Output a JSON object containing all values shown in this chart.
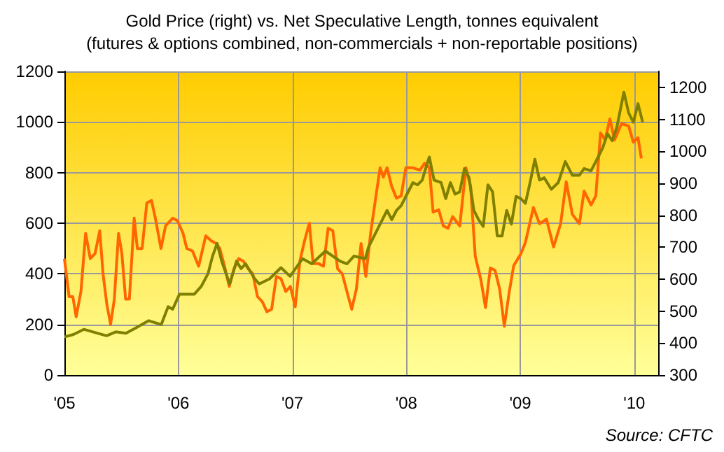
{
  "chart_data": {
    "type": "line",
    "title": "Gold Price (right) vs. Net Speculative Length, tonnes equivalent",
    "subtitle": "(futures & options combined, non-commercials + non-reportable positions)",
    "annotations": [
      "Source: CFTC"
    ],
    "xlim": [
      2005,
      2010.21
    ],
    "xticks": [
      {
        "value": 2005,
        "label": "'05"
      },
      {
        "value": 2006,
        "label": "'06"
      },
      {
        "value": 2007,
        "label": "'07"
      },
      {
        "value": 2008,
        "label": "'08"
      },
      {
        "value": 2009,
        "label": "'09"
      },
      {
        "value": 2010,
        "label": "'10"
      }
    ],
    "ylim": [
      0,
      1200
    ],
    "yticks": [
      0,
      200,
      400,
      600,
      800,
      1000,
      1200
    ],
    "y2lim": [
      300,
      1250
    ],
    "y2ticks": [
      300,
      400,
      500,
      600,
      700,
      800,
      900,
      1000,
      1100,
      1200
    ],
    "grid": true,
    "marker": "none",
    "line_style": "solid",
    "series": [
      {
        "color": "#ff6600",
        "x": [
          2005,
          2005.041,
          2005.074,
          2005.103,
          2005.145,
          2005.186,
          2005.227,
          2005.269,
          2005.31,
          2005.339,
          2005.372,
          2005.405,
          2005.438,
          2005.475,
          2005.504,
          2005.537,
          2005.57,
          2005.612,
          2005.64,
          2005.682,
          2005.723,
          2005.764,
          2005.798,
          2005.847,
          2005.888,
          2005.95,
          2005.992,
          2006.041,
          2006.074,
          2006.124,
          2006.178,
          2006.24,
          2006.289,
          2006.331,
          2006.364,
          2006.405,
          2006.446,
          2006.488,
          2006.529,
          2006.57,
          2006.612,
          2006.653,
          2006.694,
          2006.736,
          2006.777,
          2006.818,
          2006.86,
          2006.901,
          2006.942,
          2006.983,
          2007.025,
          2007.066,
          2007.107,
          2007.149,
          2007.182,
          2007.231,
          2007.273,
          2007.314,
          2007.355,
          2007.397,
          2007.438,
          2007.479,
          2007.521,
          2007.562,
          2007.603,
          2007.645,
          2007.687,
          2007.728,
          2007.77,
          2007.798,
          2007.831,
          2007.872,
          2007.914,
          2007.955,
          2007.996,
          2008.058,
          2008.119,
          2008.16,
          2008.202,
          2008.235,
          2008.284,
          2008.325,
          2008.366,
          2008.407,
          2008.469,
          2008.523,
          2008.564,
          2008.605,
          2008.654,
          2008.695,
          2008.737,
          2008.778,
          2008.819,
          2008.86,
          2008.901,
          2008.942,
          2009.004,
          2009.045,
          2009.115,
          2009.169,
          2009.23,
          2009.292,
          2009.354,
          2009.403,
          2009.457,
          2009.519,
          2009.56,
          2009.621,
          2009.663,
          2009.704,
          2009.745,
          2009.786,
          2009.827,
          2009.889,
          2009.951,
          2009.992,
          2010.033,
          2010.062
        ],
        "values": [
          460,
          310,
          310,
          230,
          330,
          560,
          460,
          480,
          570,
          400,
          280,
          200,
          300,
          560,
          480,
          300,
          300,
          620,
          500,
          500,
          680,
          690,
          620,
          500,
          590,
          620,
          610,
          560,
          500,
          490,
          430,
          550,
          530,
          520,
          500,
          430,
          350,
          420,
          460,
          450,
          420,
          400,
          310,
          290,
          250,
          260,
          390,
          380,
          330,
          350,
          270,
          450,
          530,
          600,
          440,
          440,
          430,
          580,
          570,
          420,
          400,
          330,
          260,
          340,
          520,
          390,
          561,
          690,
          819,
          782,
          819,
          745,
          699,
          708,
          819,
          819,
          810,
          837,
          819,
          644,
          653,
          589,
          580,
          626,
          589,
          819,
          745,
          469,
          377,
          267,
          423,
          414,
          340,
          193,
          322,
          432,
          478,
          524,
          662,
          598,
          616,
          506,
          598,
          764,
          635,
          598,
          727,
          672,
          708,
          957,
          929,
          1012,
          929,
          994,
          984,
          920,
          938,
          856
        ]
      },
      {
        "color": "#808000",
        "axis": "y2",
        "x": [
          2005,
          2005.08,
          2005.17,
          2005.25,
          2005.37,
          2005.45,
          2005.54,
          2005.62,
          2005.74,
          2005.85,
          2005.91,
          2005.95,
          2006.01,
          2006.14,
          2006.2,
          2006.26,
          2006.3,
          2006.34,
          2006.38,
          2006.45,
          2006.51,
          2006.55,
          2006.59,
          2006.67,
          2006.71,
          2006.8,
          2006.9,
          2006.98,
          2007.09,
          2007.17,
          2007.29,
          2007.42,
          2007.48,
          2007.54,
          2007.64,
          2007.667,
          2007.749,
          2007.79,
          2007.831,
          2007.872,
          2007.914,
          2007.955,
          2008.016,
          2008.058,
          2008.099,
          2008.14,
          2008.181,
          2008.202,
          2008.243,
          2008.305,
          2008.346,
          2008.387,
          2008.428,
          2008.469,
          2008.51,
          2008.551,
          2008.593,
          2008.634,
          2008.675,
          2008.716,
          2008.757,
          2008.798,
          2008.84,
          2008.881,
          2008.922,
          2008.963,
          2009.004,
          2009.045,
          2009.086,
          2009.128,
          2009.169,
          2009.21,
          2009.272,
          2009.333,
          2009.395,
          2009.457,
          2009.519,
          2009.56,
          2009.621,
          2009.683,
          2009.724,
          2009.765,
          2009.807,
          2009.848,
          2009.909,
          2009.951,
          2009.992,
          2010.033,
          2010.074
        ],
        "values": [
          419,
          427,
          443,
          435,
          423,
          435,
          431,
          446,
          470,
          458,
          514,
          506,
          553,
          553,
          577,
          617,
          672,
          712,
          656,
          585,
          656,
          633,
          648,
          601,
          585,
          601,
          636,
          609,
          664,
          648,
          688,
          656,
          648,
          672,
          664,
          699,
          757,
          786,
          815,
          786,
          815,
          830,
          873,
          902,
          895,
          910,
          960,
          982,
          910,
          902,
          852,
          902,
          866,
          873,
          946,
          917,
          815,
          786,
          765,
          895,
          873,
          735,
          735,
          815,
          772,
          859,
          852,
          837,
          902,
          975,
          910,
          917,
          881,
          902,
          968,
          925,
          925,
          946,
          939,
          982,
          1011,
          1055,
          1033,
          1076,
          1185,
          1120,
          1091,
          1149,
          1091
        ]
      }
    ]
  }
}
